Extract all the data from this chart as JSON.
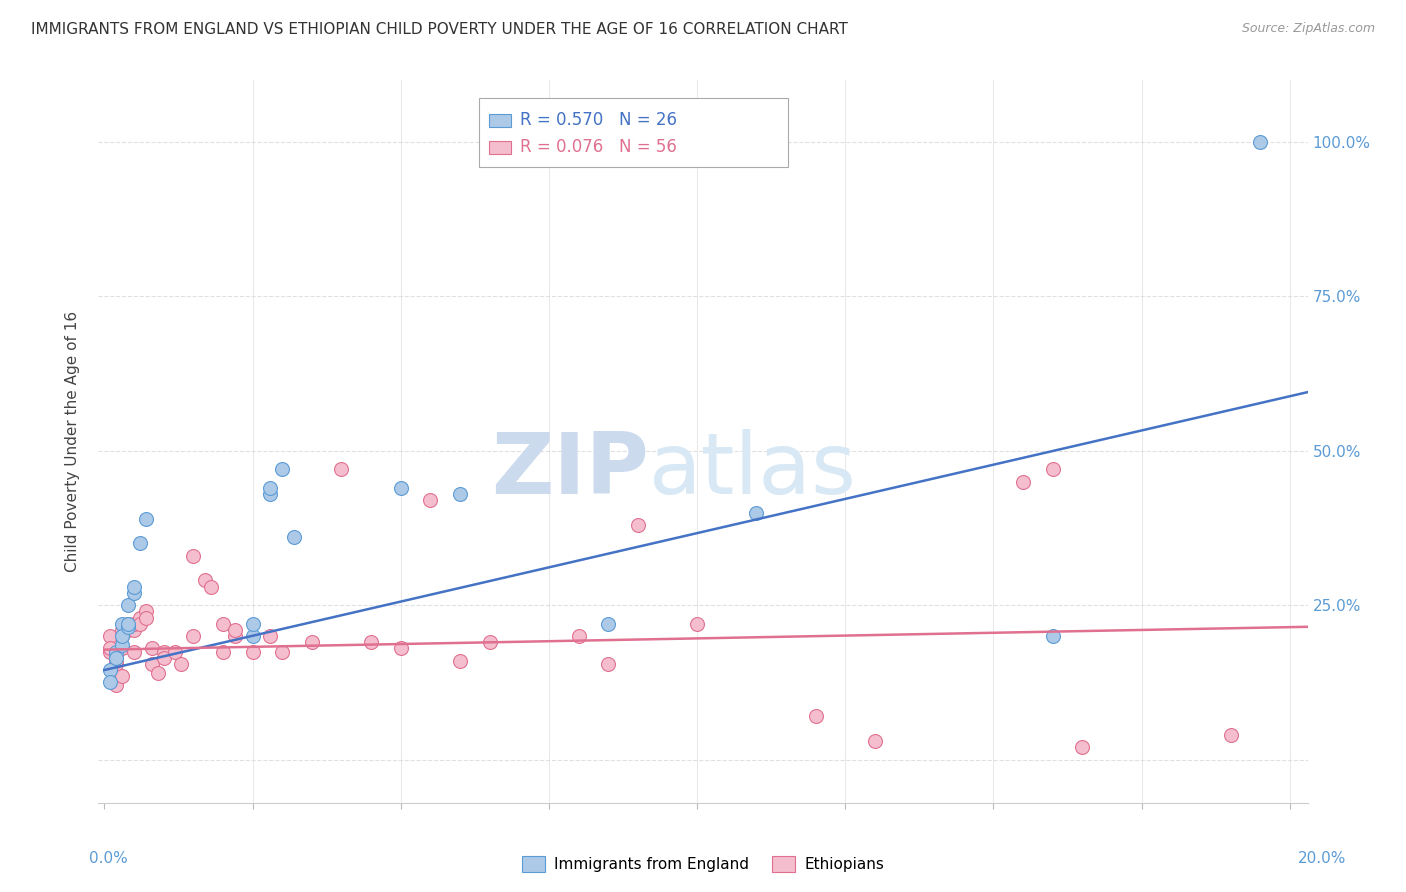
{
  "title": "IMMIGRANTS FROM ENGLAND VS ETHIOPIAN CHILD POVERTY UNDER THE AGE OF 16 CORRELATION CHART",
  "source": "Source: ZipAtlas.com",
  "ylabel": "Child Poverty Under the Age of 16",
  "yticks": [
    0.0,
    0.25,
    0.5,
    0.75,
    1.0
  ],
  "ytick_labels": [
    "",
    "25.0%",
    "50.0%",
    "75.0%",
    "100.0%"
  ],
  "xticks": [
    0.0,
    0.025,
    0.05,
    0.075,
    0.1,
    0.125,
    0.15,
    0.175,
    0.2
  ],
  "xlim": [
    -0.001,
    0.203
  ],
  "ylim": [
    -0.07,
    1.1
  ],
  "legend_blue_r": "R = 0.570",
  "legend_blue_n": "N = 26",
  "legend_pink_r": "R = 0.076",
  "legend_pink_n": "N = 56",
  "legend_label_blue": "Immigrants from England",
  "legend_label_pink": "Ethiopians",
  "blue_x": [
    0.001,
    0.001,
    0.002,
    0.002,
    0.003,
    0.003,
    0.003,
    0.004,
    0.004,
    0.004,
    0.005,
    0.005,
    0.006,
    0.007,
    0.025,
    0.025,
    0.028,
    0.028,
    0.03,
    0.032,
    0.05,
    0.06,
    0.085,
    0.11,
    0.16,
    0.195
  ],
  "blue_y": [
    0.145,
    0.125,
    0.175,
    0.165,
    0.185,
    0.22,
    0.2,
    0.215,
    0.25,
    0.22,
    0.27,
    0.28,
    0.35,
    0.39,
    0.2,
    0.22,
    0.43,
    0.44,
    0.47,
    0.36,
    0.44,
    0.43,
    0.22,
    0.4,
    0.2,
    1.0
  ],
  "pink_x": [
    0.001,
    0.001,
    0.001,
    0.002,
    0.002,
    0.002,
    0.002,
    0.003,
    0.003,
    0.003,
    0.003,
    0.004,
    0.004,
    0.004,
    0.005,
    0.005,
    0.005,
    0.006,
    0.006,
    0.007,
    0.007,
    0.008,
    0.008,
    0.009,
    0.01,
    0.01,
    0.012,
    0.013,
    0.015,
    0.015,
    0.017,
    0.018,
    0.02,
    0.02,
    0.022,
    0.022,
    0.025,
    0.028,
    0.03,
    0.035,
    0.04,
    0.045,
    0.05,
    0.055,
    0.06,
    0.065,
    0.08,
    0.085,
    0.09,
    0.1,
    0.12,
    0.13,
    0.155,
    0.16,
    0.165,
    0.19
  ],
  "pink_y": [
    0.2,
    0.175,
    0.18,
    0.155,
    0.16,
    0.17,
    0.12,
    0.18,
    0.2,
    0.21,
    0.135,
    0.21,
    0.215,
    0.22,
    0.21,
    0.22,
    0.175,
    0.23,
    0.22,
    0.24,
    0.23,
    0.18,
    0.155,
    0.14,
    0.175,
    0.165,
    0.175,
    0.155,
    0.33,
    0.2,
    0.29,
    0.28,
    0.22,
    0.175,
    0.2,
    0.21,
    0.175,
    0.2,
    0.175,
    0.19,
    0.47,
    0.19,
    0.18,
    0.42,
    0.16,
    0.19,
    0.2,
    0.155,
    0.38,
    0.22,
    0.07,
    0.03,
    0.45,
    0.47,
    0.02,
    0.04
  ],
  "blue_color": "#adc9e8",
  "pink_color": "#f5bece",
  "blue_edge_color": "#5b9bd5",
  "pink_edge_color": "#e07090",
  "blue_line_color": "#4472c4",
  "pink_line_color": "#e07090",
  "blue_line_x": [
    0.0,
    0.203
  ],
  "blue_line_y": [
    0.145,
    0.595
  ],
  "pink_line_x": [
    0.0,
    0.203
  ],
  "pink_line_y": [
    0.178,
    0.215
  ],
  "title_fontsize": 11,
  "axis_tick_color": "#5b9bd5",
  "grid_color": "#e0e0e0",
  "bg_color": "#ffffff",
  "marker_size": 100
}
